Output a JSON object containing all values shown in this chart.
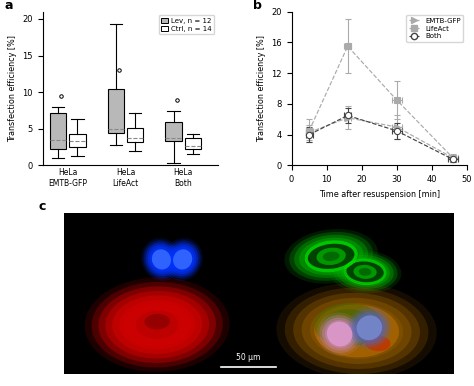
{
  "panel_a": {
    "ylabel": "Transfection efficiency [%]",
    "ylim": [
      0,
      21
    ],
    "yticks": [
      0,
      5,
      10,
      15,
      20
    ],
    "group_labels": [
      "HeLa\nEMTB-GFP",
      "HeLa\nLifeAct",
      "HeLa\nBoth"
    ],
    "lev_boxes": {
      "EMTB": {
        "q1": 2.3,
        "median": 3.5,
        "q3": 7.2,
        "whislo": 1.0,
        "whishi": 8.0,
        "fliers": [
          9.5
        ]
      },
      "LifeAct": {
        "q1": 4.5,
        "median": 5.0,
        "q3": 10.5,
        "whislo": 2.8,
        "whishi": 19.3,
        "fliers": [
          13.0
        ]
      },
      "Both": {
        "q1": 3.3,
        "median": 3.8,
        "q3": 6.0,
        "whislo": 0.3,
        "whishi": 7.5,
        "fliers": [
          9.0
        ]
      }
    },
    "ctrl_boxes": {
      "EMTB": {
        "q1": 2.5,
        "median": 3.3,
        "q3": 4.3,
        "whislo": 1.3,
        "whishi": 6.3,
        "fliers": []
      },
      "LifeAct": {
        "q1": 3.2,
        "median": 3.8,
        "q3": 5.1,
        "whislo": 2.0,
        "whishi": 7.2,
        "fliers": []
      },
      "Both": {
        "q1": 2.2,
        "median": 2.7,
        "q3": 3.8,
        "whislo": 1.5,
        "whishi": 4.3,
        "fliers": []
      }
    },
    "legend_lev": "Lev, n = 12",
    "legend_ctrl": "Ctrl, n = 14",
    "lev_color": "#b8b8b8",
    "ctrl_color": "#ffffff"
  },
  "panel_b": {
    "ylabel": "Transfection efficiency [%]",
    "xlabel": "Time after resuspension [min]",
    "ylim": [
      0,
      20
    ],
    "yticks": [
      0,
      4,
      8,
      12,
      16,
      20
    ],
    "xlim": [
      0,
      50
    ],
    "xticks": [
      0,
      10,
      20,
      30,
      40,
      50
    ],
    "series": {
      "EMTB-GFP": {
        "x": [
          5,
          16,
          30,
          46
        ],
        "y": [
          4.3,
          6.2,
          5.0,
          1.0
        ],
        "yerr": [
          1.0,
          1.5,
          1.5,
          0.4
        ],
        "xerr": [
          1.0,
          1.0,
          1.5,
          1.5
        ]
      },
      "LifeAct": {
        "x": [
          5,
          16,
          30,
          46
        ],
        "y": [
          4.5,
          15.5,
          8.5,
          1.0
        ],
        "yerr": [
          1.5,
          3.5,
          2.5,
          0.5
        ],
        "xerr": [
          1.0,
          1.0,
          1.5,
          1.5
        ]
      },
      "Both": {
        "x": [
          5,
          16,
          30,
          46
        ],
        "y": [
          4.0,
          6.5,
          4.5,
          0.8
        ],
        "yerr": [
          1.0,
          1.0,
          1.0,
          0.3
        ],
        "xerr": [
          1.0,
          1.0,
          1.5,
          1.5
        ]
      }
    }
  }
}
